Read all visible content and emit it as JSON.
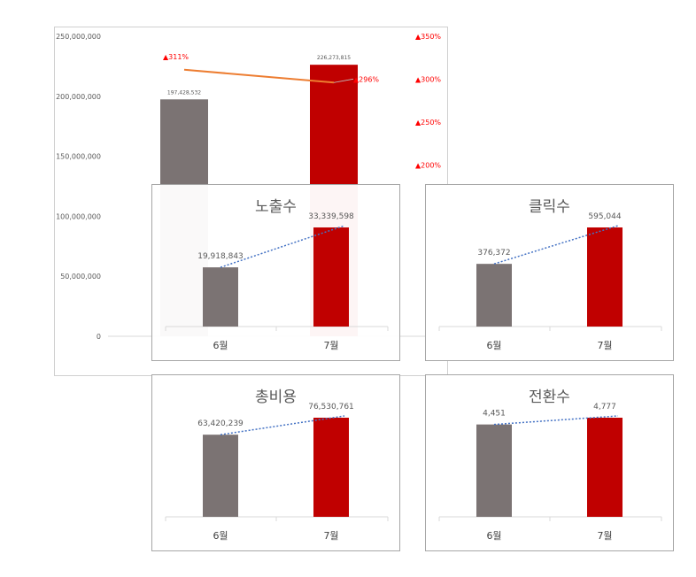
{
  "chart_data": [
    {
      "type": "bar",
      "categories": [
        "6월",
        "7월"
      ],
      "series": [
        {
          "values": [
            197428532,
            226273815
          ],
          "colors": [
            "#7b7373",
            "#c00000"
          ]
        },
        {
          "type": "line",
          "values": [
            311,
            296
          ],
          "color": "#ed7d31"
        }
      ],
      "data_labels": [
        "197,428,532",
        "226,273,815"
      ],
      "line_labels": [
        "▲311%",
        "▲296%"
      ],
      "y_left": {
        "min": 0,
        "max": 250000000,
        "step": 50000000,
        "ticks": [
          "0",
          "50,000,000",
          "100,000,000",
          "150,000,000",
          "200,000,000",
          "250,000,000"
        ]
      },
      "y_right": {
        "min": 0,
        "max": 350,
        "step": 50,
        "ticks": [
          "▲350%",
          "▲300%",
          "▲250%",
          "▲200%"
        ],
        "color": "#ff0000"
      }
    },
    {
      "type": "bar",
      "title": "노출수",
      "categories": [
        "6월",
        "7월"
      ],
      "values": [
        19918843,
        33339598
      ],
      "labels": [
        "19,918,843",
        "33,339,598"
      ],
      "trendline": true,
      "colors": [
        "#7b7373",
        "#c00000"
      ]
    },
    {
      "type": "bar",
      "title": "클릭수",
      "categories": [
        "6월",
        "7월"
      ],
      "values": [
        376372,
        595044
      ],
      "labels": [
        "376,372",
        "595,044"
      ],
      "trendline": true,
      "colors": [
        "#7b7373",
        "#c00000"
      ]
    },
    {
      "type": "bar",
      "title": "총비용",
      "categories": [
        "6월",
        "7월"
      ],
      "values": [
        63420239,
        76530761
      ],
      "labels": [
        "63,420,239",
        "76,530,761"
      ],
      "trendline": true,
      "colors": [
        "#7b7373",
        "#c00000"
      ]
    },
    {
      "type": "bar",
      "title": "전환수",
      "categories": [
        "6월",
        "7월"
      ],
      "values": [
        4451,
        4777
      ],
      "labels": [
        "4,451",
        "4,777"
      ],
      "trendline": true,
      "colors": [
        "#7b7373",
        "#c00000"
      ]
    }
  ]
}
